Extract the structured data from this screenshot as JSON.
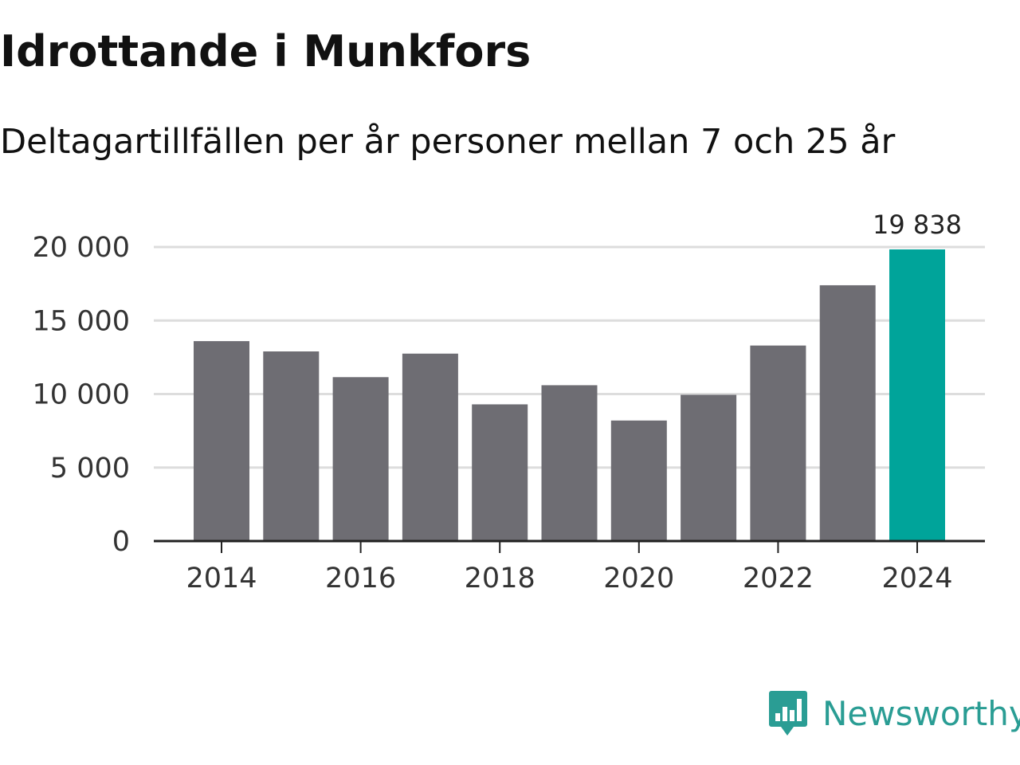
{
  "header": {
    "title": "Idrottande i Munkfors",
    "subtitle": "Deltagartillfällen per år personer mellan 7 och 25 år"
  },
  "brand": {
    "name": "Newsworthy",
    "color": "#2a9d94"
  },
  "colors": {
    "bar": "#6e6d73",
    "highlight": "#00a49a",
    "grid": "#dddddd",
    "axis": "#222222"
  },
  "chart_data": {
    "type": "bar",
    "title": "Idrottande i Munkfors",
    "subtitle": "Deltagartillfällen per år personer mellan 7 och 25 år",
    "xlabel": "",
    "ylabel": "",
    "categories": [
      "2014",
      "2015",
      "2016",
      "2017",
      "2018",
      "2019",
      "2020",
      "2021",
      "2022",
      "2023",
      "2024"
    ],
    "values": [
      13600,
      12900,
      11150,
      12750,
      9300,
      10600,
      8200,
      9950,
      13300,
      17400,
      19838
    ],
    "highlight_index": 10,
    "highlight_label": "19 838",
    "ylim": [
      0,
      20000
    ],
    "yticks": [
      0,
      5000,
      10000,
      15000,
      20000
    ],
    "ytick_labels": [
      "0",
      "5 000",
      "10 000",
      "15 000",
      "20 000"
    ],
    "xtick_labels": [
      "2014",
      "2016",
      "2018",
      "2020",
      "2022",
      "2024"
    ],
    "grid": true,
    "legend": "none"
  }
}
